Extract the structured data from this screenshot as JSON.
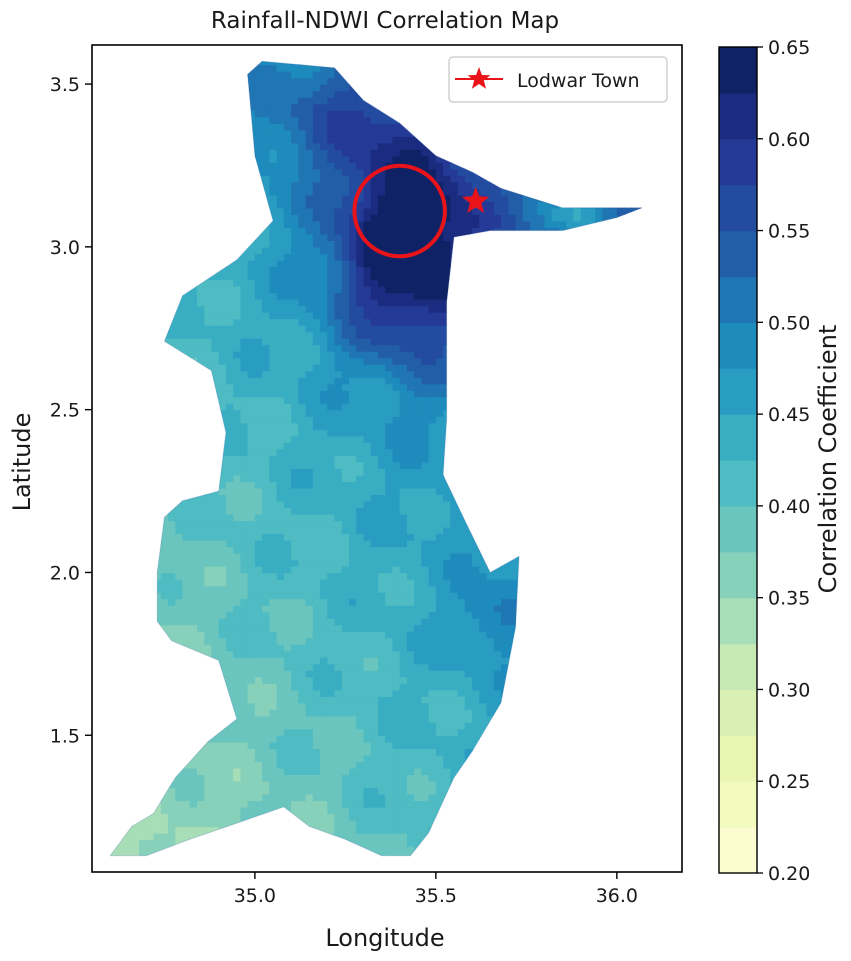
{
  "chart_data": {
    "type": "heatmap",
    "title": "Rainfall-NDWI Correlation Map",
    "xlabel": "Longitude",
    "ylabel": "Latitude",
    "xlim": [
      34.55,
      36.18
    ],
    "ylim": [
      1.08,
      3.62
    ],
    "x_ticks": [
      {
        "value": 35.0,
        "label": "35.0"
      },
      {
        "value": 35.5,
        "label": "35.5"
      },
      {
        "value": 36.0,
        "label": "36.0"
      }
    ],
    "y_ticks": [
      {
        "value": 1.5,
        "label": "1.5"
      },
      {
        "value": 2.0,
        "label": "2.0"
      },
      {
        "value": 2.5,
        "label": "2.5"
      },
      {
        "value": 3.0,
        "label": "3.0"
      },
      {
        "value": 3.5,
        "label": "3.5"
      }
    ],
    "colorbar": {
      "label": "Correlation Coefficient",
      "min": 0.2,
      "max": 0.65,
      "colormap": "YlGnBu",
      "ticks": [
        {
          "value": 0.2,
          "label": "0.20"
        },
        {
          "value": 0.25,
          "label": "0.25"
        },
        {
          "value": 0.3,
          "label": "0.30"
        },
        {
          "value": 0.35,
          "label": "0.35"
        },
        {
          "value": 0.4,
          "label": "0.40"
        },
        {
          "value": 0.45,
          "label": "0.45"
        },
        {
          "value": 0.5,
          "label": "0.50"
        },
        {
          "value": 0.55,
          "label": "0.55"
        },
        {
          "value": 0.6,
          "label": "0.60"
        },
        {
          "value": 0.65,
          "label": "0.65"
        }
      ]
    },
    "region_outline": [
      [
        34.6,
        1.13
      ],
      [
        34.66,
        1.22
      ],
      [
        34.72,
        1.26
      ],
      [
        34.78,
        1.37
      ],
      [
        34.87,
        1.48
      ],
      [
        34.95,
        1.55
      ],
      [
        34.9,
        1.73
      ],
      [
        34.77,
        1.79
      ],
      [
        34.73,
        1.85
      ],
      [
        34.73,
        2.0
      ],
      [
        34.75,
        2.17
      ],
      [
        34.8,
        2.22
      ],
      [
        34.9,
        2.25
      ],
      [
        34.92,
        2.43
      ],
      [
        34.88,
        2.62
      ],
      [
        34.75,
        2.71
      ],
      [
        34.8,
        2.85
      ],
      [
        34.95,
        2.96
      ],
      [
        35.05,
        3.08
      ],
      [
        35.0,
        3.28
      ],
      [
        34.98,
        3.53
      ],
      [
        35.02,
        3.57
      ],
      [
        35.22,
        3.55
      ],
      [
        35.3,
        3.45
      ],
      [
        35.4,
        3.38
      ],
      [
        35.5,
        3.28
      ],
      [
        35.6,
        3.23
      ],
      [
        35.68,
        3.18
      ],
      [
        35.85,
        3.12
      ],
      [
        36.07,
        3.12
      ],
      [
        36.0,
        3.09
      ],
      [
        35.85,
        3.05
      ],
      [
        35.65,
        3.05
      ],
      [
        35.55,
        3.03
      ],
      [
        35.53,
        2.83
      ],
      [
        35.53,
        2.47
      ],
      [
        35.52,
        2.3
      ],
      [
        35.58,
        2.16
      ],
      [
        35.65,
        2.0
      ],
      [
        35.73,
        2.05
      ],
      [
        35.72,
        1.83
      ],
      [
        35.68,
        1.6
      ],
      [
        35.6,
        1.45
      ],
      [
        35.55,
        1.37
      ],
      [
        35.48,
        1.2
      ],
      [
        35.43,
        1.13
      ],
      [
        35.35,
        1.13
      ],
      [
        35.25,
        1.18
      ],
      [
        35.15,
        1.22
      ],
      [
        35.08,
        1.28
      ],
      [
        34.95,
        1.23
      ],
      [
        34.82,
        1.18
      ],
      [
        34.7,
        1.13
      ]
    ],
    "hotspot_circle": {
      "center": [
        35.4,
        3.11
      ],
      "radius_deg_lon": 0.125
    },
    "point_marker": {
      "label": "Lodwar Town",
      "lon": 35.61,
      "lat": 3.14,
      "marker": "star"
    },
    "legend": {
      "position": "top-right",
      "entries": [
        "Lodwar Town"
      ]
    },
    "grid": false,
    "colors": {
      "marker": "#e8141a",
      "circle": "#e8141a",
      "axis": "#000000"
    }
  }
}
